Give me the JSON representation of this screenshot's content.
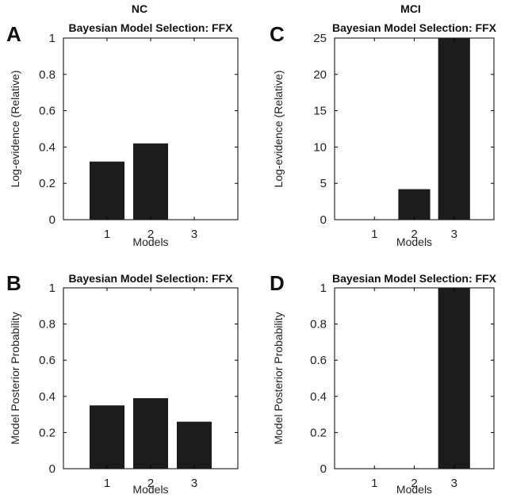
{
  "figure": {
    "group_titles": {
      "left": "NC",
      "right": "MCI"
    },
    "bar_color": "#1c1c1c"
  },
  "chart_data": [
    {
      "panel": "A",
      "type": "bar",
      "title": "Bayesian Model Selection: FFX",
      "xlabel": "Models",
      "ylabel": "Log-evidence (Relative)",
      "categories": [
        "1",
        "2",
        "3"
      ],
      "values": [
        0.32,
        0.42,
        0
      ],
      "ylim": [
        0,
        1
      ],
      "yticks": [
        "0",
        "0.2",
        "0.4",
        "0.6",
        "0.8",
        "1"
      ],
      "grid": false
    },
    {
      "panel": "C",
      "type": "bar",
      "title": "Bayesian Model Selection: FFX",
      "xlabel": "Models",
      "ylabel": "Log-evidence (Relative)",
      "categories": [
        "1",
        "2",
        "3"
      ],
      "values": [
        0,
        4.2,
        25
      ],
      "ylim": [
        0,
        25
      ],
      "yticks": [
        "0",
        "5",
        "10",
        "15",
        "20",
        "25"
      ],
      "grid": false
    },
    {
      "panel": "B",
      "type": "bar",
      "title": "Bayesian Model Selection: FFX",
      "xlabel": "Models",
      "ylabel": "Model Posterior Probability",
      "categories": [
        "1",
        "2",
        "3"
      ],
      "values": [
        0.35,
        0.39,
        0.26
      ],
      "ylim": [
        0,
        1
      ],
      "yticks": [
        "0",
        "0.2",
        "0.4",
        "0.6",
        "0.8",
        "1"
      ],
      "grid": false
    },
    {
      "panel": "D",
      "type": "bar",
      "title": "Bayesian Model Selection: FFX",
      "xlabel": "Models",
      "ylabel": "Model Posterior Probability",
      "categories": [
        "1",
        "2",
        "3"
      ],
      "values": [
        0,
        0,
        1
      ],
      "ylim": [
        0,
        1
      ],
      "yticks": [
        "0",
        "0.2",
        "0.4",
        "0.6",
        "0.8",
        "1"
      ],
      "grid": false
    }
  ]
}
